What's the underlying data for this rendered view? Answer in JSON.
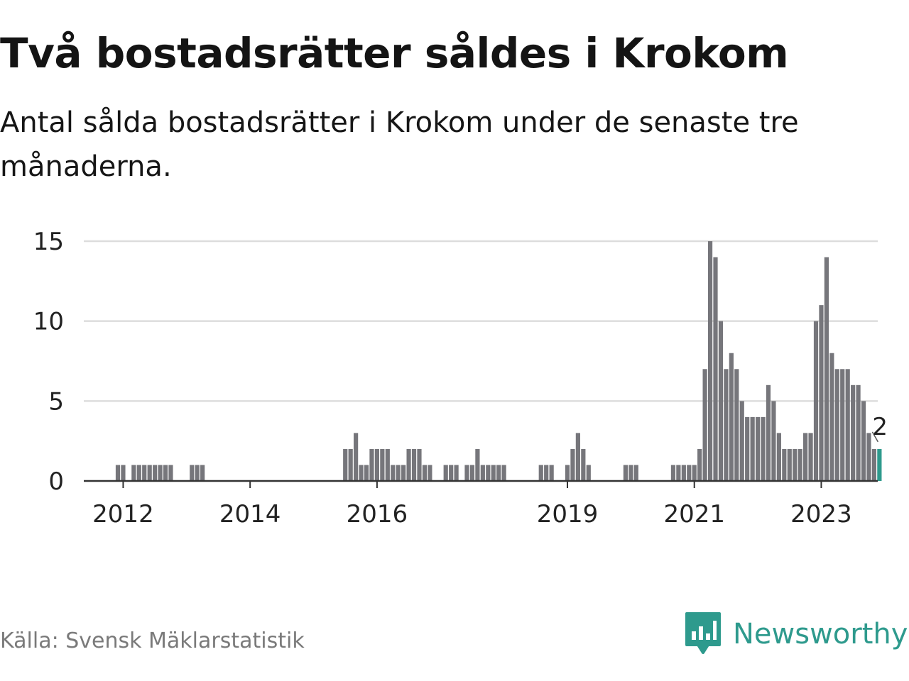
{
  "header": {
    "title": "Två bostadsrätter såldes i Krokom",
    "subtitle": "Antal sålda bostadsrätter i Krokom under de senaste tre månaderna."
  },
  "footer": {
    "source": "Källa: Svensk Mäklarstatistik",
    "brand": "Newsworthy",
    "brand_icon": "bar-chart-speech-bubble-icon"
  },
  "colors": {
    "bar": "#76767b",
    "highlight": "#2e9a8d",
    "grid": "#dddddd",
    "axis": "#333333",
    "text": "#111111",
    "brand": "#2e9a8d"
  },
  "chart_data": {
    "type": "bar",
    "title": "Två bostadsrätter såldes i Krokom",
    "xlabel": "",
    "ylabel": "",
    "ylim": [
      0,
      15
    ],
    "yticks": [
      0,
      5,
      10,
      15
    ],
    "xticks": [
      "2012",
      "2014",
      "2016",
      "2019",
      "2021",
      "2023"
    ],
    "grid": true,
    "series": [
      {
        "start": "2011-12",
        "frequency": "monthly",
        "values": [
          1,
          1,
          0,
          1,
          1,
          1,
          1,
          1,
          1,
          1,
          1,
          0,
          0,
          0,
          1,
          1,
          1,
          0,
          0,
          0,
          0,
          0,
          0,
          0,
          0,
          0,
          0,
          0,
          0,
          0,
          0,
          0,
          0,
          0,
          0,
          0,
          0,
          0,
          0,
          0,
          0,
          0,
          0,
          2,
          2,
          3,
          1,
          1,
          2,
          2,
          2,
          2,
          1,
          1,
          1,
          2,
          2,
          2,
          1,
          1,
          0,
          0,
          1,
          1,
          1,
          0,
          1,
          1,
          2,
          1,
          1,
          1,
          1,
          1,
          0,
          0,
          0,
          0,
          0,
          0,
          1,
          1,
          1,
          0,
          0,
          1,
          2,
          3,
          2,
          1,
          0,
          0,
          0,
          0,
          0,
          0,
          1,
          1,
          1,
          0,
          0,
          0,
          0,
          0,
          0,
          1,
          1,
          1,
          1,
          1,
          2,
          7,
          15,
          14,
          10,
          7,
          8,
          7,
          5,
          4,
          4,
          4,
          4,
          6,
          5,
          3,
          2,
          2,
          2,
          2,
          3,
          3,
          10,
          11,
          14,
          8,
          7,
          7,
          7,
          6,
          6,
          5,
          3,
          2,
          2
        ]
      }
    ],
    "annotation": {
      "label": "2",
      "target": "last"
    }
  }
}
